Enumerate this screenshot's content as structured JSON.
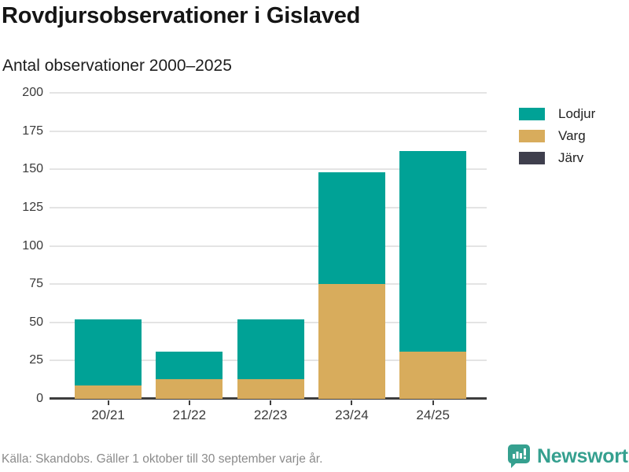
{
  "header": {
    "title": "Rovdjursobservationer i Gislaved",
    "subtitle": "Antal observationer 2000–2025"
  },
  "chart_data": {
    "type": "bar",
    "stacked": true,
    "title": "Rovdjursobservationer i Gislaved",
    "subtitle": "Antal observationer 2000–2025",
    "xlabel": "",
    "ylabel": "",
    "categories": [
      "20/21",
      "21/22",
      "22/23",
      "23/24",
      "24/25"
    ],
    "series": [
      {
        "name": "Lodjur",
        "color": "#00A296",
        "values": [
          43,
          18,
          39,
          73,
          131
        ]
      },
      {
        "name": "Varg",
        "color": "#D8AC5C",
        "values": [
          9,
          13,
          13,
          75,
          31
        ]
      },
      {
        "name": "Järv",
        "color": "#3F3F4D",
        "values": [
          0,
          0,
          0,
          0,
          0
        ]
      }
    ],
    "stack_order_bottom_to_top": [
      "Varg",
      "Lodjur",
      "Järv"
    ],
    "totals": [
      52,
      31,
      52,
      148,
      162
    ],
    "ylim": [
      0,
      200
    ],
    "yticks": [
      0,
      25,
      50,
      75,
      100,
      125,
      150,
      175,
      200
    ],
    "grid": true,
    "legend_position": "right"
  },
  "footer": {
    "source": "Källa: Skandobs. Gäller 1 oktober till 30 september varje år."
  },
  "branding": {
    "name": "Newsworthy",
    "color": "#35A08F",
    "logo": "bar-chart-speech-bubble-icon"
  }
}
